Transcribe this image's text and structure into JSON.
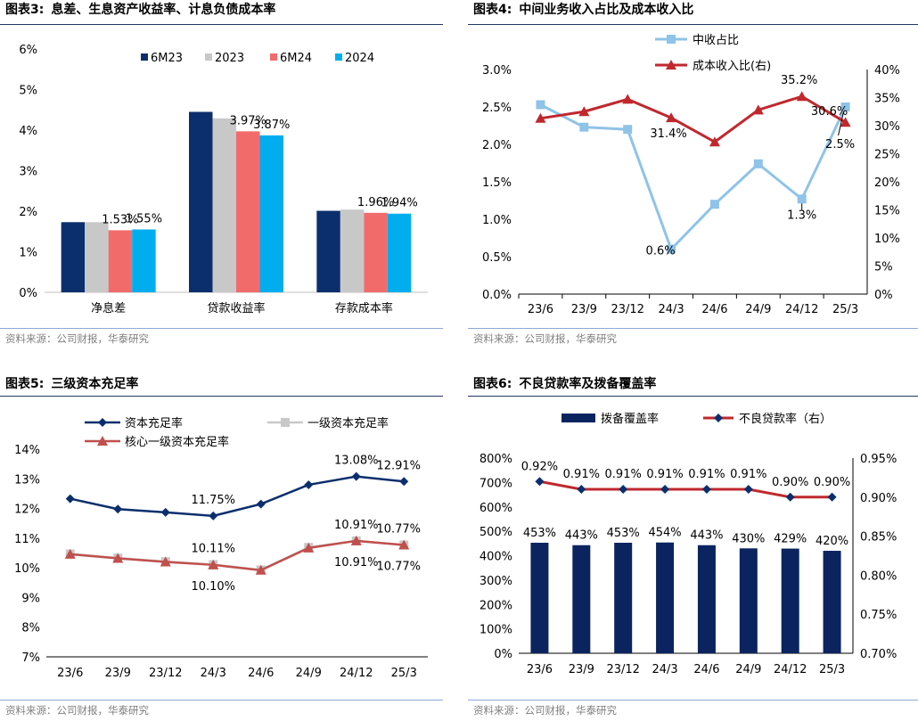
{
  "source_note": "资料来源：公司财报，华泰研究",
  "panels": [
    {
      "label": "图表3:",
      "title": "息差、生息资产收益率、计息负债成本率"
    },
    {
      "label": "图表4:",
      "title": "中间业务收入占比及成本收入比"
    },
    {
      "label": "图表5:",
      "title": "三级资本充足率"
    },
    {
      "label": "图表6:",
      "title": "不良贷款率及拨备覆盖率"
    }
  ],
  "chart_data": [
    {
      "type": "bar",
      "title": "息差、生息资产收益率、计息负债成本率",
      "categories": [
        "净息差",
        "贷款收益率",
        "存款成本率"
      ],
      "series": [
        {
          "name": "6M23",
          "color": "#0b2f6d",
          "values": [
            1.73,
            4.45,
            2.01
          ]
        },
        {
          "name": "2023",
          "color": "#c8c8c8",
          "values": [
            1.73,
            4.29,
            2.04
          ]
        },
        {
          "name": "6M24",
          "color": "#f26b6b",
          "values": [
            1.53,
            3.97,
            1.96
          ]
        },
        {
          "name": "2024",
          "color": "#00aeef",
          "values": [
            1.55,
            3.87,
            1.94
          ]
        }
      ],
      "data_labels": [
        {
          "series": 2,
          "index": 0,
          "text": "1.53%"
        },
        {
          "series": 3,
          "index": 0,
          "text": "1.55%"
        },
        {
          "series": 2,
          "index": 1,
          "text": "3.97%"
        },
        {
          "series": 3,
          "index": 1,
          "text": "3.87%"
        },
        {
          "series": 2,
          "index": 2,
          "text": "1.96%"
        },
        {
          "series": 3,
          "index": 2,
          "text": "1.94%"
        }
      ],
      "yticks": [
        "0%",
        "1%",
        "2%",
        "3%",
        "4%",
        "5%",
        "6%"
      ],
      "ylim": [
        0,
        6
      ]
    },
    {
      "type": "line",
      "title": "中间业务收入占比及成本收入比",
      "categories": [
        "23/6",
        "23/9",
        "23/12",
        "24/3",
        "24/6",
        "24/9",
        "24/12",
        "25/3"
      ],
      "series": [
        {
          "name": "中收占比",
          "axis": "left",
          "color": "#8fc3e8",
          "marker": "square",
          "values": [
            2.53,
            2.23,
            2.2,
            0.6,
            1.2,
            1.74,
            1.27,
            2.5
          ]
        },
        {
          "name": "成本收入比(右)",
          "axis": "right",
          "color": "#c0282e",
          "marker": "triangle",
          "values": [
            31.3,
            32.5,
            34.7,
            31.4,
            27.1,
            32.8,
            35.2,
            30.6
          ]
        }
      ],
      "data_labels": [
        {
          "series": 0,
          "index": 3,
          "text": "0.6%"
        },
        {
          "series": 1,
          "index": 3,
          "text": "31.4%"
        },
        {
          "series": 0,
          "index": 6,
          "text": "1.3%"
        },
        {
          "series": 1,
          "index": 6,
          "text": "35.2%"
        },
        {
          "series": 1,
          "index": 7,
          "text": "30.6%"
        },
        {
          "series": 0,
          "index": 7,
          "text": "2.5%"
        }
      ],
      "yticks_left": [
        "0.0%",
        "0.5%",
        "1.0%",
        "1.5%",
        "2.0%",
        "2.5%",
        "3.0%"
      ],
      "ylim_left": [
        0,
        3
      ],
      "yticks_right": [
        "0%",
        "5%",
        "10%",
        "15%",
        "20%",
        "25%",
        "30%",
        "35%",
        "40%"
      ],
      "ylim_right": [
        0,
        40
      ]
    },
    {
      "type": "line",
      "title": "三级资本充足率",
      "categories": [
        "23/6",
        "23/9",
        "23/12",
        "24/3",
        "24/6",
        "24/9",
        "24/12",
        "25/3"
      ],
      "series": [
        {
          "name": "资本充足率",
          "color": "#0b2f6d",
          "marker": "diamond",
          "values": [
            12.33,
            11.98,
            11.87,
            11.75,
            12.15,
            12.8,
            13.08,
            12.91
          ]
        },
        {
          "name": "一级资本充足率",
          "color": "#c8c8c8",
          "marker": "square",
          "values": [
            10.47,
            10.33,
            10.21,
            10.11,
            9.93,
            10.69,
            10.91,
            10.77
          ]
        },
        {
          "name": "核心一级资本充足率",
          "color": "#c0504d",
          "marker": "triangle",
          "values": [
            10.46,
            10.32,
            10.2,
            10.1,
            9.92,
            10.67,
            10.91,
            10.77
          ]
        }
      ],
      "data_labels": [
        {
          "series": 0,
          "index": 3,
          "text": "11.75%"
        },
        {
          "series": 1,
          "index": 3,
          "text": "10.11%"
        },
        {
          "series": 2,
          "index": 3,
          "text": "10.10%"
        },
        {
          "series": 0,
          "index": 6,
          "text": "13.08%"
        },
        {
          "series": 1,
          "index": 6,
          "text": "10.91%"
        },
        {
          "series": 2,
          "index": 6,
          "text": "10.91%"
        },
        {
          "series": 0,
          "index": 7,
          "text": "12.91%"
        },
        {
          "series": 1,
          "index": 7,
          "text": "10.77%"
        },
        {
          "series": 2,
          "index": 7,
          "text": "10.77%"
        }
      ],
      "yticks": [
        "7%",
        "8%",
        "9%",
        "10%",
        "11%",
        "12%",
        "13%",
        "14%"
      ],
      "ylim": [
        7,
        14
      ]
    },
    {
      "type": "bar+line",
      "title": "不良贷款率及拨备覆盖率",
      "categories": [
        "23/6",
        "23/9",
        "23/12",
        "24/3",
        "24/6",
        "24/9",
        "24/12",
        "25/3"
      ],
      "series": [
        {
          "name": "拨备覆盖率",
          "axis": "left",
          "type": "bar",
          "color": "#0b2460",
          "values": [
            453,
            443,
            453,
            454,
            443,
            430,
            429,
            420
          ],
          "labels": [
            "453%",
            "443%",
            "453%",
            "454%",
            "443%",
            "430%",
            "429%",
            "420%"
          ]
        },
        {
          "name": "不良贷款率（右）",
          "axis": "right",
          "type": "line",
          "color": "#c0282e",
          "marker_color": "#0b2f6d",
          "values": [
            0.92,
            0.91,
            0.91,
            0.91,
            0.91,
            0.91,
            0.9,
            0.9
          ],
          "labels": [
            "0.92%",
            "0.91%",
            "0.91%",
            "0.91%",
            "0.91%",
            "0.91%",
            "0.90%",
            "0.90%"
          ]
        }
      ],
      "yticks_left": [
        "0%",
        "100%",
        "200%",
        "300%",
        "400%",
        "500%",
        "600%",
        "700%",
        "800%"
      ],
      "ylim_left": [
        0,
        800
      ],
      "yticks_right": [
        "0.70%",
        "0.75%",
        "0.80%",
        "0.85%",
        "0.90%",
        "0.95%"
      ],
      "ylim_right": [
        0.7,
        0.95
      ]
    }
  ]
}
